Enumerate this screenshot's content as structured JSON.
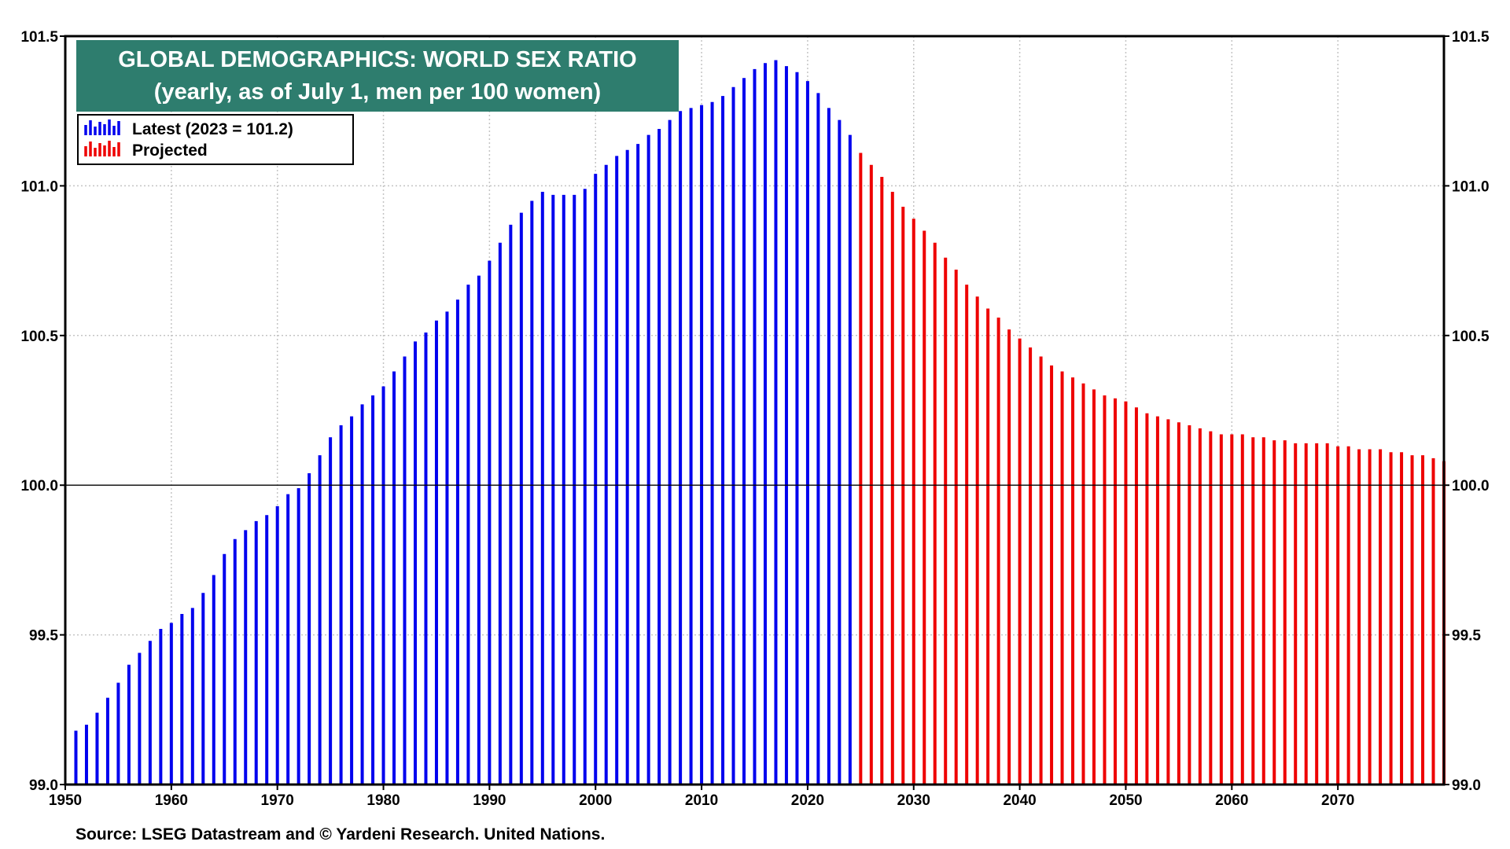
{
  "chart_data": {
    "type": "bar",
    "title": "GLOBAL DEMOGRAPHICS: WORLD SEX RATIO",
    "subtitle": "(yearly, as of July 1, men per 100 women)",
    "xlabel": "",
    "ylabel": "",
    "ylim": [
      99.0,
      101.5
    ],
    "xlim": [
      1950,
      2080
    ],
    "y_ticks": [
      "101.5",
      "101.0",
      "100.5",
      "100.0",
      "99.5",
      "99.0"
    ],
    "x_ticks": [
      "1950",
      "1960",
      "1970",
      "1980",
      "1990",
      "2000",
      "2010",
      "2020",
      "2030",
      "2040",
      "2050",
      "2060",
      "2070"
    ],
    "reference_line": 100.0,
    "grid": true,
    "legend_position": "top-left",
    "colors": {
      "latest": "#0000ee",
      "projected": "#ee0000",
      "title_bg": "#2e7d6e"
    },
    "series": [
      {
        "name": "Latest (2023 = 101.2)",
        "color": "#0000ee",
        "start_year": 1951,
        "values": [
          99.18,
          99.2,
          99.24,
          99.29,
          99.34,
          99.4,
          99.44,
          99.48,
          99.52,
          99.54,
          99.57,
          99.59,
          99.64,
          99.7,
          99.77,
          99.82,
          99.85,
          99.88,
          99.9,
          99.93,
          99.97,
          99.99,
          100.04,
          100.1,
          100.16,
          100.2,
          100.23,
          100.27,
          100.3,
          100.33,
          100.38,
          100.43,
          100.48,
          100.51,
          100.55,
          100.58,
          100.62,
          100.67,
          100.7,
          100.75,
          100.81,
          100.87,
          100.91,
          100.95,
          100.98,
          100.97,
          100.97,
          100.97,
          100.99,
          101.04,
          101.07,
          101.1,
          101.12,
          101.14,
          101.17,
          101.19,
          101.22,
          101.25,
          101.26,
          101.27,
          101.28,
          101.3,
          101.33,
          101.36,
          101.39,
          101.41,
          101.42,
          101.4,
          101.38,
          101.35,
          101.31,
          101.26,
          101.22,
          101.17
        ]
      },
      {
        "name": "Projected",
        "color": "#ee0000",
        "start_year": 2025,
        "values": [
          101.11,
          101.07,
          101.03,
          100.98,
          100.93,
          100.89,
          100.85,
          100.81,
          100.76,
          100.72,
          100.67,
          100.63,
          100.59,
          100.56,
          100.52,
          100.49,
          100.46,
          100.43,
          100.4,
          100.38,
          100.36,
          100.34,
          100.32,
          100.3,
          100.29,
          100.28,
          100.26,
          100.24,
          100.23,
          100.22,
          100.21,
          100.2,
          100.19,
          100.18,
          100.17,
          100.17,
          100.17,
          100.16,
          100.16,
          100.15,
          100.15,
          100.14,
          100.14,
          100.14,
          100.14,
          100.13,
          100.13,
          100.12,
          100.12,
          100.12,
          100.11,
          100.11,
          100.1,
          100.1,
          100.09,
          100.08
        ]
      }
    ],
    "legend": [
      {
        "label": "Latest (2023 = 101.2)",
        "color": "#0000ee"
      },
      {
        "label": "Projected",
        "color": "#ee0000"
      }
    ],
    "source": "Source: LSEG Datastream and © Yardeni Research. United Nations."
  }
}
